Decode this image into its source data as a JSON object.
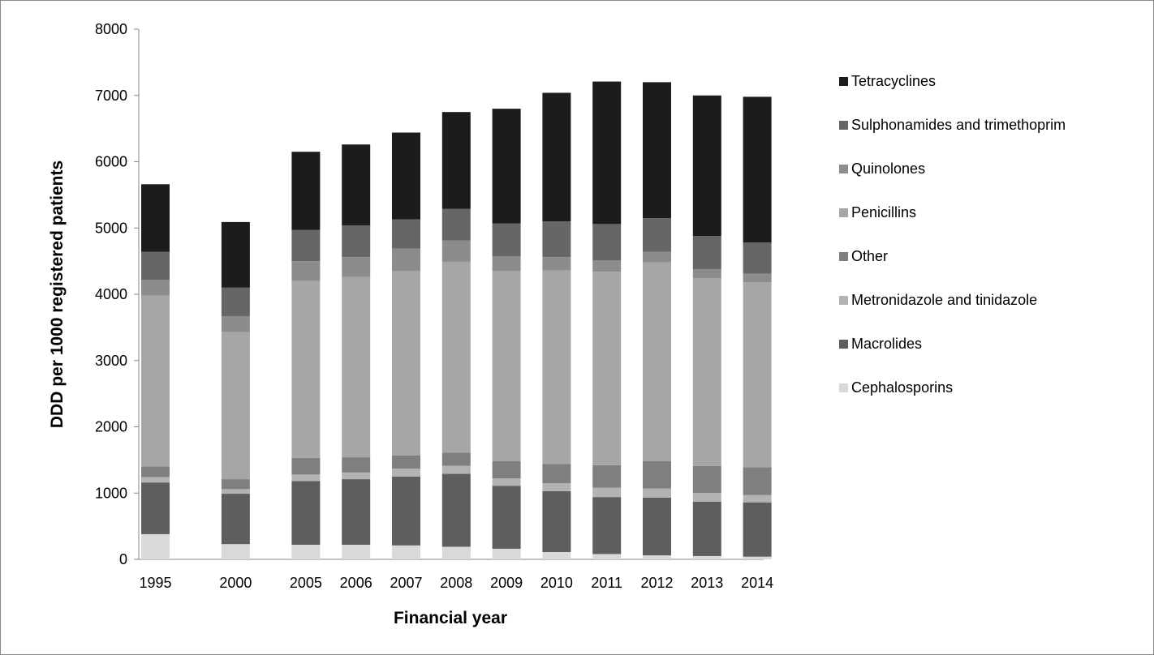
{
  "chart_data": {
    "type": "bar",
    "stacked": true,
    "title": "",
    "xlabel": "Financial year",
    "ylabel": "DDD per 1000 registered patients",
    "ylim": [
      0,
      8000
    ],
    "yticks": [
      "0",
      "1000",
      "2000",
      "3000",
      "4000",
      "5000",
      "6000",
      "7000",
      "8000"
    ],
    "grid": false,
    "legend_position": "right",
    "categories": [
      "1995",
      "2000",
      "2005",
      "2006",
      "2007",
      "2008",
      "2009",
      "2010",
      "2011",
      "2012",
      "2013",
      "2014"
    ],
    "series": [
      {
        "name": "Cephalosporins",
        "color": "#d9d9d9",
        "values": [
          380,
          230,
          220,
          220,
          210,
          190,
          160,
          110,
          80,
          60,
          50,
          40
        ]
      },
      {
        "name": "Macrolides",
        "color": "#5e5e5e",
        "values": [
          780,
          760,
          960,
          990,
          1040,
          1100,
          950,
          920,
          860,
          870,
          820,
          820
        ]
      },
      {
        "name": "Metronidazole and tinidazole",
        "color": "#b3b3b3",
        "values": [
          80,
          70,
          100,
          100,
          120,
          120,
          110,
          120,
          140,
          140,
          130,
          110
        ]
      },
      {
        "name": "Other",
        "color": "#7f7f7f",
        "values": [
          160,
          150,
          250,
          230,
          200,
          200,
          260,
          290,
          340,
          410,
          410,
          420
        ]
      },
      {
        "name": "Penicillins",
        "color": "#a6a6a6",
        "values": [
          2580,
          2220,
          2670,
          2720,
          2780,
          2880,
          2870,
          2920,
          2920,
          3000,
          2830,
          2790
        ]
      },
      {
        "name": "Quinolones",
        "color": "#8c8c8c",
        "values": [
          240,
          240,
          300,
          300,
          340,
          320,
          220,
          200,
          170,
          160,
          140,
          130
        ]
      },
      {
        "name": "Sulphonamides and trimethoprim",
        "color": "#666666",
        "values": [
          420,
          430,
          470,
          480,
          440,
          480,
          500,
          540,
          550,
          510,
          500,
          470
        ]
      },
      {
        "name": "Tetracyclines",
        "color": "#1c1c1c",
        "values": [
          1020,
          990,
          1180,
          1220,
          1310,
          1460,
          1730,
          1940,
          2150,
          2050,
          2120,
          2200
        ]
      }
    ],
    "legend_order": [
      "Tetracyclines",
      "Sulphonamides and trimethoprim",
      "Quinolones",
      "Penicillins",
      "Other",
      "Metronidazole and tinidazole",
      "Macrolides",
      "Cephalosporins"
    ]
  }
}
